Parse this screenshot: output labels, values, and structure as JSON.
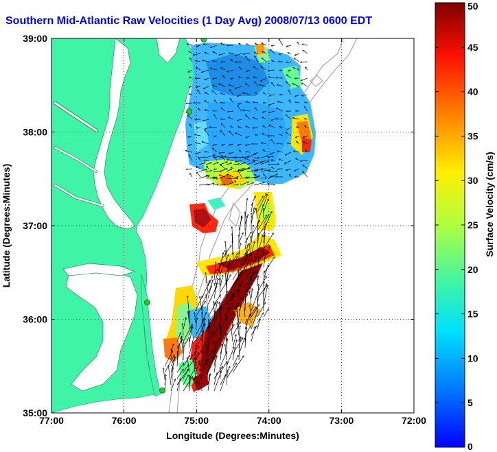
{
  "title": "Southern Mid-Atlantic Raw Velocities (1 Day Avg) 2008/07/13 0600 EDT",
  "map": {
    "xlabel": "Longitude (Degrees:Minutes)",
    "ylabel": "Latitude (Degrees:Minutes)",
    "xlim": [
      -77,
      -72
    ],
    "ylim": [
      35,
      39
    ],
    "x_ticks": [
      {
        "value": -77,
        "label": "77:00"
      },
      {
        "value": -76,
        "label": "76:00"
      },
      {
        "value": -75,
        "label": "75:00"
      },
      {
        "value": -74,
        "label": "74:00"
      },
      {
        "value": -73,
        "label": "73:00"
      },
      {
        "value": -72,
        "label": "72:00"
      }
    ],
    "y_ticks": [
      {
        "value": 35,
        "label": "35:00"
      },
      {
        "value": 36,
        "label": "36:00"
      },
      {
        "value": 37,
        "label": "37:00"
      },
      {
        "value": 38,
        "label": "38:00"
      },
      {
        "value": 39,
        "label": "39:00"
      }
    ],
    "grid": "dotted",
    "land_color": "#3ff4a6",
    "water_color": "#ffffff",
    "station_marker_color": "#22cc22",
    "stations": [
      {
        "lon": -74.9,
        "lat": 38.99
      },
      {
        "lon": -75.1,
        "lat": 38.22
      },
      {
        "lon": -75.68,
        "lat": 36.18
      },
      {
        "lon": -75.47,
        "lat": 35.24
      }
    ]
  },
  "colorbar": {
    "label": "Surface Velocity (cm/s)",
    "min": 0,
    "max": 50,
    "ticks": [
      0,
      5,
      10,
      15,
      20,
      25,
      30,
      35,
      40,
      45,
      50
    ],
    "colormap": "jet"
  }
}
